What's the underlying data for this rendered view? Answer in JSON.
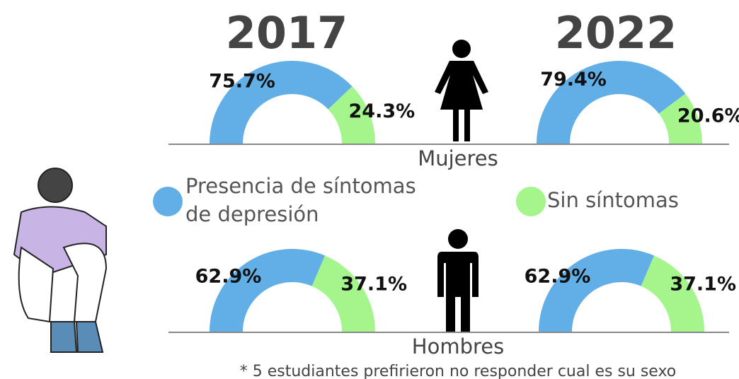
{
  "years": [
    "2017",
    "2022"
  ],
  "groups": [
    "Mujeres",
    "Hombres"
  ],
  "legend": [
    {
      "name": "Presencia de síntomas de depresión",
      "color": "#62aee6"
    },
    {
      "name": "Sin síntomas",
      "color": "#a3f58c"
    }
  ],
  "footnote": "* 5 estudiantes prefirieron no responder cual es su sexo",
  "chart_data": [
    {
      "type": "donut",
      "half": true,
      "values": [
        75.7,
        24.3
      ],
      "value_labels": [
        "75.7%",
        "24.3%"
      ],
      "colors": [
        "#62aee6",
        "#a3f58c"
      ]
    },
    {
      "type": "donut",
      "half": true,
      "values": [
        79.4,
        20.6
      ],
      "value_labels": [
        "79.4%",
        "20.6%"
      ],
      "colors": [
        "#62aee6",
        "#a3f58c"
      ]
    },
    {
      "type": "donut",
      "half": true,
      "values": [
        62.9,
        37.1
      ],
      "value_labels": [
        "62.9%",
        "37.1%"
      ],
      "colors": [
        "#62aee6",
        "#a3f58c"
      ]
    },
    {
      "type": "donut",
      "half": true,
      "values": [
        62.9,
        37.1
      ],
      "value_labels": [
        "62.9%",
        "37.1%"
      ],
      "colors": [
        "#62aee6",
        "#a3f58c"
      ]
    }
  ]
}
